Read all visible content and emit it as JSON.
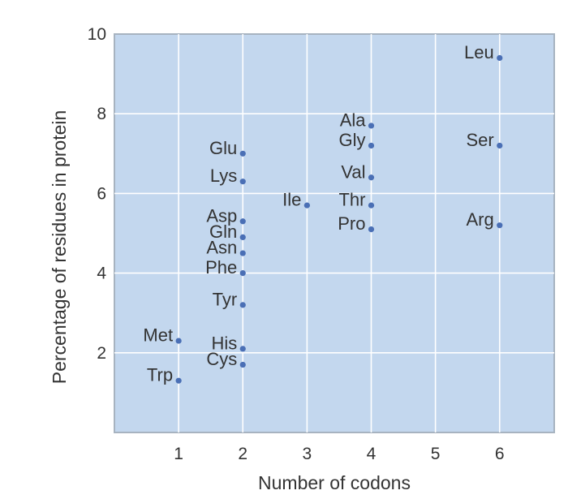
{
  "chart_data": {
    "type": "scatter",
    "xlabel": "Number of codons",
    "ylabel": "Percentage of residues in protein",
    "xlim": [
      0,
      6.85
    ],
    "ylim": [
      0,
      10
    ],
    "x_ticks": [
      "1",
      "2",
      "3",
      "4",
      "5",
      "6"
    ],
    "x_tick_values": [
      1,
      2,
      3,
      4,
      5,
      6
    ],
    "y_ticks": [
      "2",
      "4",
      "6",
      "8",
      "10"
    ],
    "y_tick_values": [
      2,
      4,
      6,
      8,
      10
    ],
    "grid": true,
    "colors": {
      "plot_background": "#c3d7ee",
      "point": "#4a6fb5",
      "grid": "#ffffff"
    },
    "points": [
      {
        "label": "Met",
        "x": 1,
        "y": 2.3
      },
      {
        "label": "Trp",
        "x": 1,
        "y": 1.3
      },
      {
        "label": "Glu",
        "x": 2,
        "y": 7.0
      },
      {
        "label": "Lys",
        "x": 2,
        "y": 6.3
      },
      {
        "label": "Asp",
        "x": 2,
        "y": 5.3
      },
      {
        "label": "Gln",
        "x": 2,
        "y": 4.9
      },
      {
        "label": "Asn",
        "x": 2,
        "y": 4.5
      },
      {
        "label": "Phe",
        "x": 2,
        "y": 4.0
      },
      {
        "label": "Tyr",
        "x": 2,
        "y": 3.2
      },
      {
        "label": "His",
        "x": 2,
        "y": 2.1
      },
      {
        "label": "Cys",
        "x": 2,
        "y": 1.7
      },
      {
        "label": "Ile",
        "x": 3,
        "y": 5.7
      },
      {
        "label": "Ala",
        "x": 4,
        "y": 7.7
      },
      {
        "label": "Gly",
        "x": 4,
        "y": 7.2
      },
      {
        "label": "Val",
        "x": 4,
        "y": 6.4
      },
      {
        "label": "Thr",
        "x": 4,
        "y": 5.7
      },
      {
        "label": "Pro",
        "x": 4,
        "y": 5.1
      },
      {
        "label": "Leu",
        "x": 6,
        "y": 9.4
      },
      {
        "label": "Ser",
        "x": 6,
        "y": 7.2
      },
      {
        "label": "Arg",
        "x": 6,
        "y": 5.2
      }
    ]
  }
}
